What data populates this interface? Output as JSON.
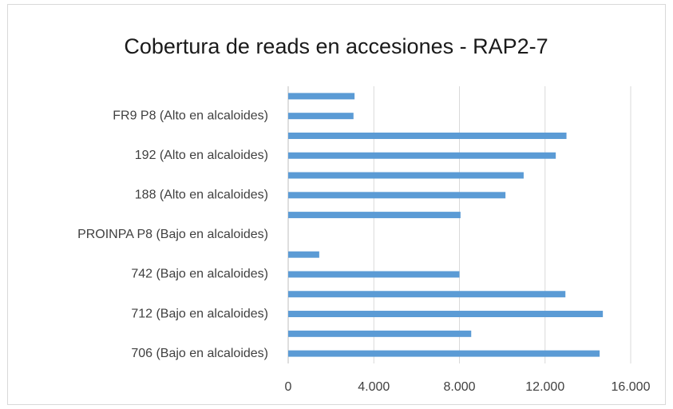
{
  "chart_data": {
    "type": "barh",
    "title": "Cobertura de reads en accesiones - RAP2-7",
    "categories": [
      null,
      "FR9 P8 (Alto en alcaloides)",
      null,
      "192 (Alto en alcaloides)",
      null,
      "188 (Alto en alcaloides)",
      null,
      "PROINPA P8 (Bajo en alcaloides)",
      null,
      "742 (Bajo en alcaloides)",
      null,
      "712 (Bajo en alcaloides)",
      null,
      "706 (Bajo en alcaloides)"
    ],
    "values": [
      3100,
      3050,
      13000,
      12500,
      11000,
      10150,
      8050,
      0,
      1450,
      8000,
      12950,
      14700,
      8550,
      14550
    ],
    "color": "#5b9bd5",
    "xlim": [
      0,
      16000
    ],
    "xticks": [
      0,
      {
        "value": 4000,
        "label": "4.000"
      },
      {
        "value": 8000,
        "label": "8.000"
      },
      {
        "value": 12000,
        "label": "12.000"
      },
      {
        "value": 16000,
        "label": "16.000"
      }
    ],
    "grid": true
  }
}
